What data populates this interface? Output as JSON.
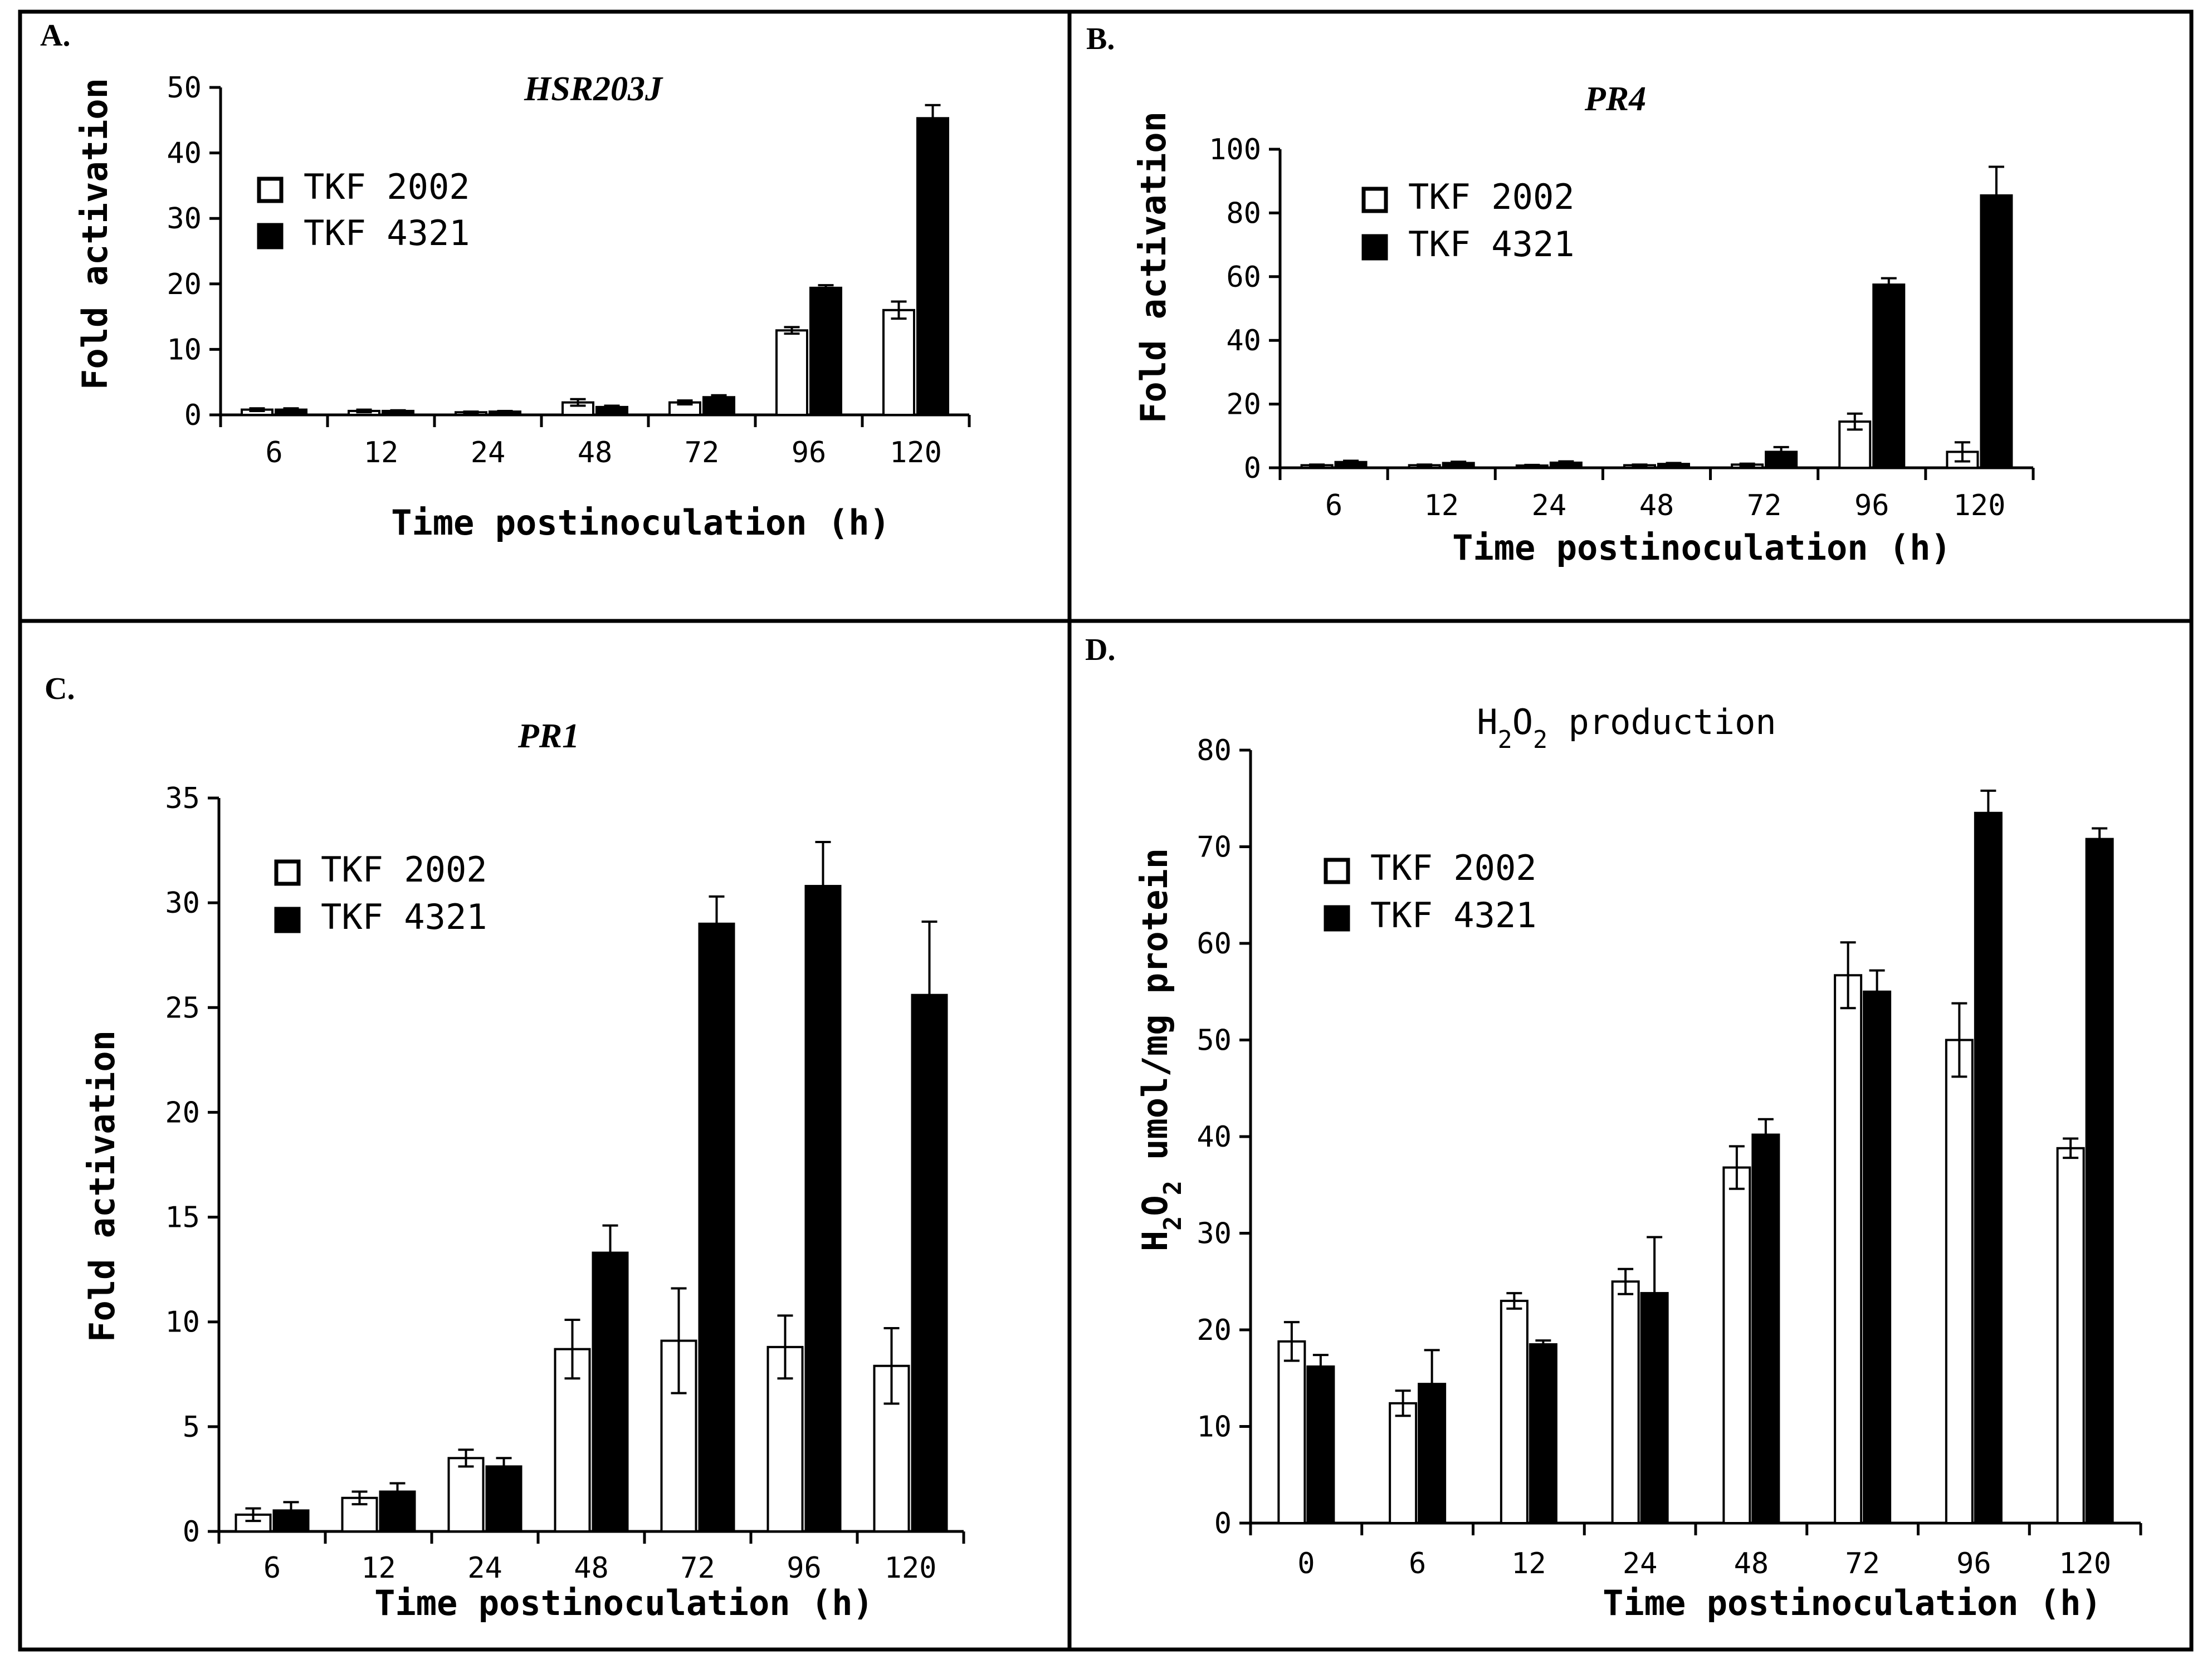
{
  "chart_data": [
    {
      "panel": "A.",
      "type": "bar",
      "title": "HSR203J",
      "title_italic": true,
      "categories": [
        "6",
        "12",
        "24",
        "48",
        "72",
        "96",
        "120"
      ],
      "series": [
        {
          "name": "TKF 2002",
          "values": [
            0.8,
            0.6,
            0.4,
            1.9,
            1.9,
            12.9,
            16.0
          ],
          "errors": [
            0.2,
            0.2,
            0.1,
            0.5,
            0.3,
            0.5,
            1.3
          ]
        },
        {
          "name": "TKF 4321",
          "values": [
            0.8,
            0.6,
            0.5,
            1.2,
            2.7,
            19.4,
            45.3
          ],
          "errors": [
            0.2,
            0.1,
            0.1,
            0.2,
            0.3,
            0.4,
            2.0
          ]
        }
      ],
      "xlabel": "Time postinoculation (h)",
      "ylabel": "Fold activation",
      "ylim": [
        0,
        50
      ],
      "yticks": [
        0,
        10,
        20,
        30,
        40,
        50
      ],
      "legend": "upper-left"
    },
    {
      "panel": "B.",
      "type": "bar",
      "title": "PR4",
      "title_italic": true,
      "categories": [
        "6",
        "12",
        "24",
        "48",
        "72",
        "96",
        "120"
      ],
      "series": [
        {
          "name": "TKF 2002",
          "values": [
            0.8,
            0.8,
            0.7,
            0.8,
            1.0,
            14.5,
            5.0
          ],
          "errors": [
            0.2,
            0.2,
            0.2,
            0.2,
            0.3,
            2.5,
            3.0
          ]
        },
        {
          "name": "TKF 4321",
          "values": [
            1.8,
            1.5,
            1.6,
            1.2,
            5.0,
            57.5,
            85.5
          ],
          "errors": [
            0.4,
            0.4,
            0.4,
            0.3,
            1.5,
            2.0,
            9.0
          ]
        }
      ],
      "xlabel": "Time postinoculation (h)",
      "ylabel": "Fold activation",
      "ylim": [
        0,
        100
      ],
      "yticks": [
        0,
        20,
        40,
        60,
        80,
        100
      ],
      "legend": "upper-left"
    },
    {
      "panel": "C.",
      "type": "bar",
      "title": "PR1",
      "title_italic": true,
      "categories": [
        "6",
        "12",
        "24",
        "48",
        "72",
        "96",
        "120"
      ],
      "series": [
        {
          "name": "TKF 2002",
          "values": [
            0.8,
            1.6,
            3.5,
            8.7,
            9.1,
            8.8,
            7.9
          ],
          "errors": [
            0.3,
            0.3,
            0.4,
            1.4,
            2.5,
            1.5,
            1.8
          ]
        },
        {
          "name": "TKF 4321",
          "values": [
            1.0,
            1.9,
            3.1,
            13.3,
            29.0,
            30.8,
            25.6
          ],
          "errors": [
            0.4,
            0.4,
            0.4,
            1.3,
            1.3,
            2.1,
            3.5
          ]
        }
      ],
      "xlabel": "Time postinoculation (h)",
      "ylabel": "Fold activation",
      "ylim": [
        0,
        35
      ],
      "yticks": [
        0,
        5,
        10,
        15,
        20,
        25,
        30,
        35
      ],
      "legend": "upper-left"
    },
    {
      "panel": "D.",
      "type": "bar",
      "title": "H2O2 production",
      "title_italic": false,
      "categories": [
        "0",
        "6",
        "12",
        "24",
        "48",
        "72",
        "96",
        "120"
      ],
      "series": [
        {
          "name": "TKF 2002",
          "values": [
            18.8,
            12.4,
            23.0,
            25.0,
            36.8,
            56.7,
            50.0,
            38.8
          ],
          "errors": [
            2.0,
            1.3,
            0.8,
            1.3,
            2.2,
            3.4,
            3.8,
            1.0
          ]
        },
        {
          "name": "TKF 4321",
          "values": [
            16.2,
            14.4,
            18.5,
            23.8,
            40.2,
            55.0,
            73.5,
            70.8
          ],
          "errors": [
            1.2,
            3.5,
            0.4,
            5.8,
            1.6,
            2.2,
            2.3,
            1.1
          ]
        }
      ],
      "xlabel": "Time postinoculation (h)",
      "ylabel": "H2O2 umol/mg protein",
      "ylim": [
        0,
        80
      ],
      "yticks": [
        0,
        10,
        20,
        30,
        40,
        50,
        60,
        70,
        80
      ],
      "legend": "upper-left"
    }
  ],
  "colors": {
    "series_1_fill": "#ffffff",
    "series_2_fill": "#000000",
    "stroke": "#000000"
  }
}
